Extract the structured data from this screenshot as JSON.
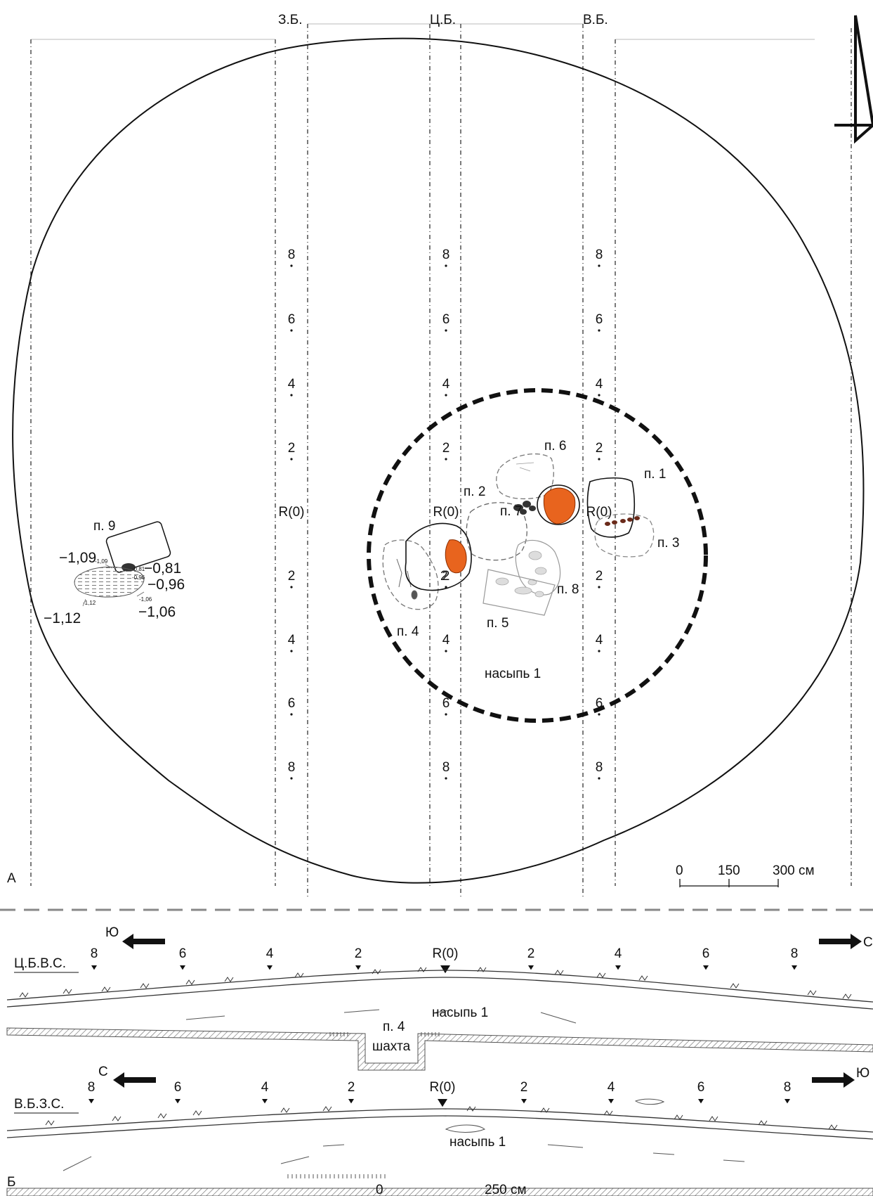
{
  "plan": {
    "panel_label": "А",
    "baulk_labels": {
      "west": "З.Б.",
      "center": "Ц.Б.",
      "east": "В.Б."
    },
    "tick_labels": [
      "8",
      "6",
      "4",
      "2",
      "R(0)",
      "2",
      "4",
      "6",
      "8"
    ],
    "mound_label": "насыпь 1",
    "pits": {
      "p1": "п. 1",
      "p2": "п. 2",
      "p3": "п. 3",
      "p4": "п. 4",
      "p5": "п. 5",
      "p6": "п. 6",
      "p7": "п. 7",
      "p8": "п. 8",
      "p9": "п. 9",
      "p2_number": "2"
    },
    "depths": {
      "d109": "−1,09",
      "d081": "−0,81",
      "d096": "−0,96",
      "d106": "−1,06",
      "d112": "−1,12"
    },
    "tiny_depths": {
      "t109": "-1,09",
      "t081": "-0,81",
      "t096": "-0,96",
      "t106": "-1,06",
      "t112": "-1,12"
    },
    "scale": {
      "labels": [
        "0",
        "150",
        "300 см"
      ]
    },
    "north_arrow_icon": "north-arrow-icon",
    "colors": {
      "burial_fill": "#e8641e",
      "burial_dark": "#333333"
    }
  },
  "sections": {
    "panel_label": "Б",
    "section_1": {
      "name": "Ц.Б.В.С.",
      "left_direction": "Ю",
      "right_direction": "С",
      "ticks": [
        "8",
        "6",
        "4",
        "2",
        "R(0)",
        "2",
        "4",
        "6",
        "8"
      ],
      "mound_label": "насыпь 1",
      "pit_label": "п. 4",
      "shaft_label": "шахта"
    },
    "section_2": {
      "name": "В.Б.З.С.",
      "left_direction": "С",
      "right_direction": "Ю",
      "ticks": [
        "8",
        "6",
        "4",
        "2",
        "R(0)",
        "2",
        "4",
        "6",
        "8"
      ],
      "mound_label": "насыпь 1"
    },
    "scale": {
      "labels": [
        "0",
        "250 см"
      ]
    }
  }
}
